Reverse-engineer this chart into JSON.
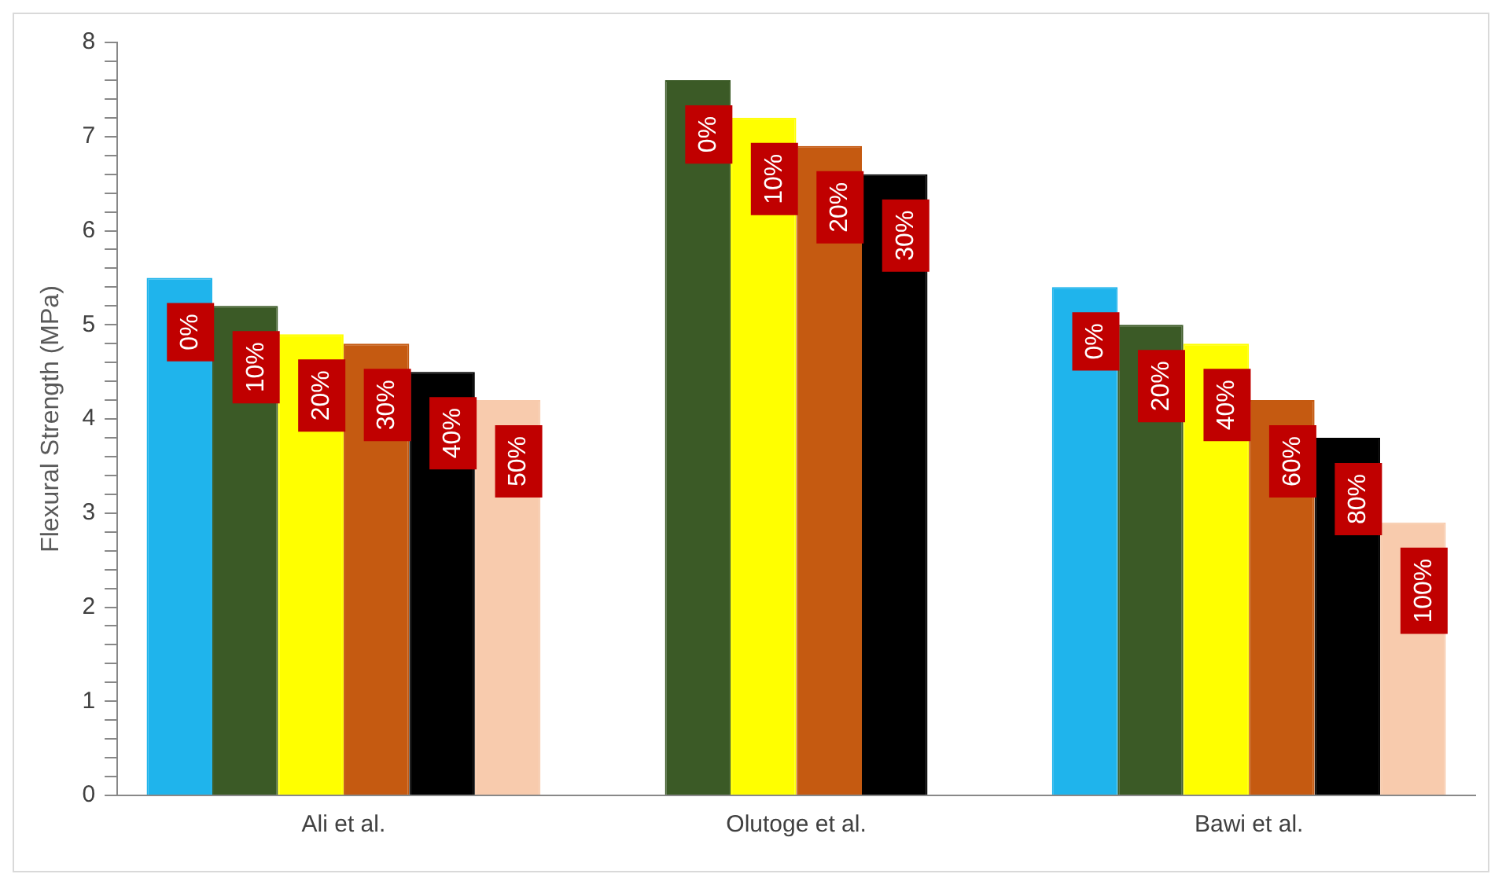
{
  "chart_data": {
    "type": "bar",
    "ylabel": "Flexural Strength (MPa)",
    "categories": [
      "Ali et al.",
      "Olutoge et al.",
      "Bawi et al."
    ],
    "series": [
      {
        "color": "#1fb4ec",
        "values": [
          5.5,
          null,
          5.4
        ]
      },
      {
        "color": "#3b5a26",
        "values": [
          5.2,
          7.6,
          5.0
        ]
      },
      {
        "color": "#ffff00",
        "values": [
          4.9,
          7.2,
          4.8
        ]
      },
      {
        "color": "#c55a11",
        "values": [
          4.8,
          6.9,
          4.2
        ]
      },
      {
        "color": "#000000",
        "values": [
          4.5,
          6.6,
          3.8
        ]
      },
      {
        "color": "#f8cbad",
        "values": [
          4.2,
          null,
          2.9
        ]
      }
    ],
    "annotations": [
      "0%",
      "10%",
      "20%",
      "30%",
      "40%",
      "50%",
      "0%",
      "10%",
      "20%",
      "30%",
      "0%",
      "20%",
      "40%",
      "60%",
      "80%",
      "100%"
    ],
    "ylim": [
      0,
      8
    ],
    "yticks": [
      0,
      {
        "value": 0.2,
        "label": null
      },
      {
        "value": 0.4,
        "label": null
      },
      {
        "value": 0.6,
        "label": null
      },
      {
        "value": 0.8,
        "label": null
      },
      1,
      {
        "value": 1.2,
        "label": null
      },
      {
        "value": 1.4,
        "label": null
      },
      {
        "value": 1.6,
        "label": null
      },
      {
        "value": 1.8,
        "label": null
      },
      2,
      {
        "value": 2.2,
        "label": null
      },
      {
        "value": 2.4,
        "label": null
      },
      {
        "value": 2.6,
        "label": null
      },
      {
        "value": 2.8,
        "label": null
      },
      3,
      {
        "value": 3.2,
        "label": null
      },
      {
        "value": 3.4,
        "label": null
      },
      {
        "value": 3.6,
        "label": null
      },
      {
        "value": 3.8,
        "label": null
      },
      4,
      {
        "value": 4.2,
        "label": null
      },
      {
        "value": 4.4,
        "label": null
      },
      {
        "value": 4.6,
        "label": null
      },
      {
        "value": 4.8,
        "label": null
      },
      5,
      {
        "value": 5.2,
        "label": null
      },
      {
        "value": 5.4,
        "label": null
      },
      {
        "value": 5.6,
        "label": null
      },
      {
        "value": 5.8,
        "label": null
      },
      6,
      {
        "value": 6.2,
        "label": null
      },
      {
        "value": 6.4,
        "label": null
      },
      {
        "value": 6.6,
        "label": null
      },
      {
        "value": 6.8,
        "label": null
      },
      7,
      {
        "value": 7.2,
        "label": null
      },
      {
        "value": 7.4,
        "label": null
      },
      {
        "value": 7.6,
        "label": null
      },
      {
        "value": 7.8,
        "label": null
      },
      8
    ],
    "grid": false,
    "legend": false
  }
}
